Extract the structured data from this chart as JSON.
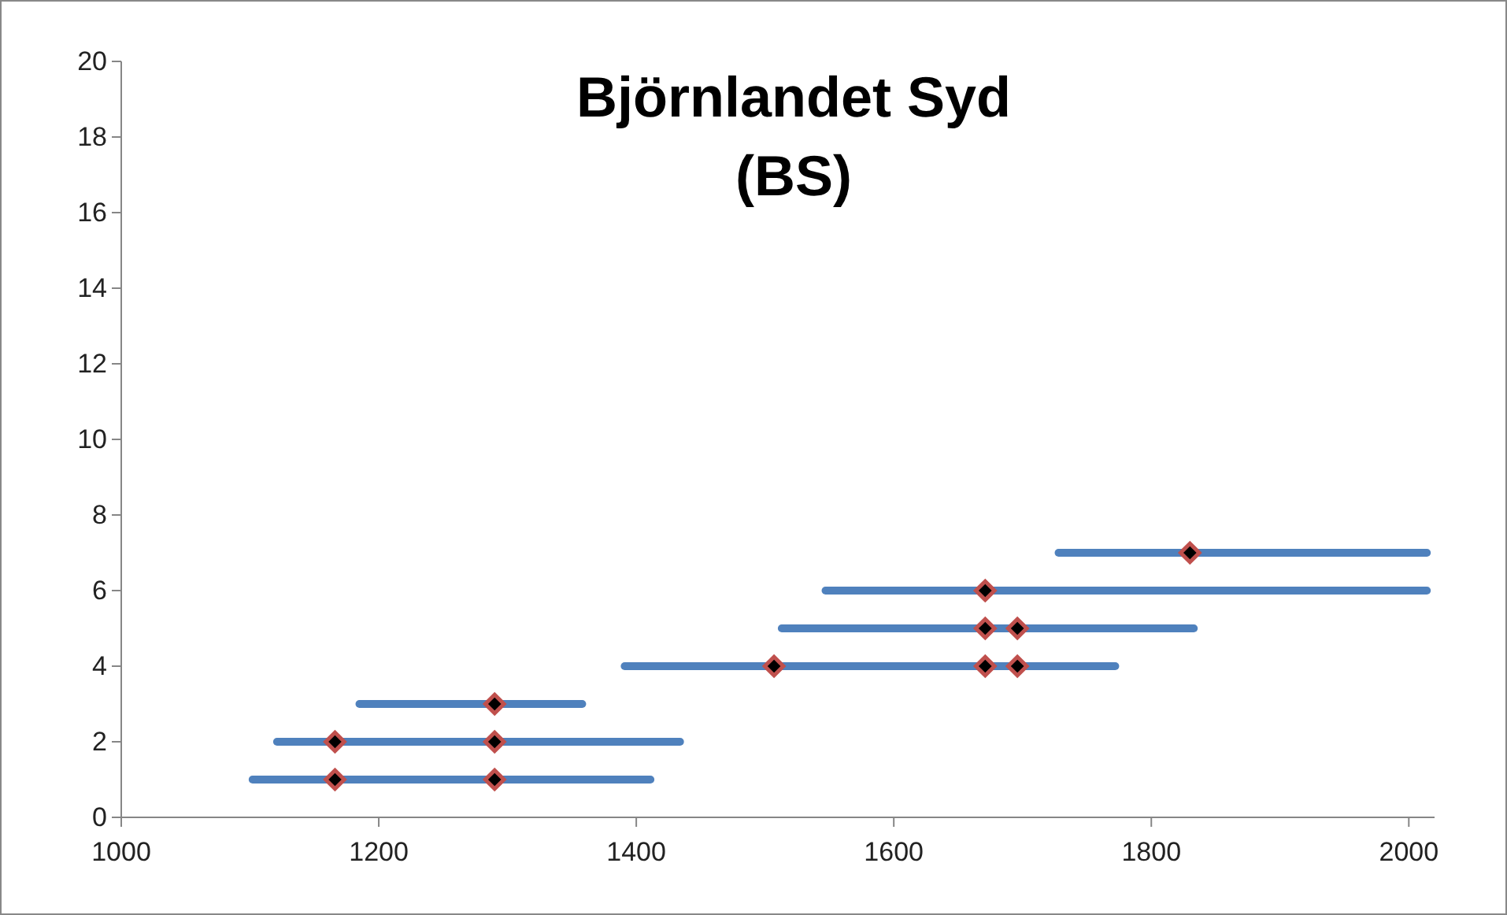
{
  "chart_data": {
    "type": "line",
    "title": "Björnlandet Syd",
    "subtitle": "(BS)",
    "xlim": [
      1000,
      2020
    ],
    "xticks": [
      1000,
      1200,
      1400,
      1600,
      1800,
      2000
    ],
    "ylim": [
      0,
      20
    ],
    "yticks": [
      0,
      2,
      4,
      6,
      8,
      10,
      12,
      14,
      16,
      18,
      20
    ],
    "grid": false,
    "line_style": "solid",
    "series": [
      {
        "color": "#4f81bd",
        "x": [
          1102,
          1411
        ],
        "values": [
          1,
          1
        ]
      },
      {
        "color": "#4f81bd",
        "x": [
          1121,
          1434
        ],
        "values": [
          2,
          2
        ]
      },
      {
        "color": "#4f81bd",
        "x": [
          1185,
          1358
        ],
        "values": [
          3,
          3
        ]
      },
      {
        "color": "#4f81bd",
        "x": [
          1391,
          1772
        ],
        "values": [
          4,
          4
        ]
      },
      {
        "color": "#4f81bd",
        "x": [
          1513,
          1833
        ],
        "values": [
          5,
          5
        ]
      },
      {
        "color": "#4f81bd",
        "x": [
          1547,
          2014
        ],
        "values": [
          6,
          6
        ]
      },
      {
        "color": "#4f81bd",
        "x": [
          1728,
          2014
        ],
        "values": [
          7,
          7
        ]
      },
      {
        "type": "scatter",
        "color": "#000000",
        "marker": "diamond",
        "x": [
          1166,
          1290,
          1166,
          1290,
          1290,
          1507,
          1671,
          1696,
          1671,
          1696,
          1671,
          1830
        ],
        "values": [
          1,
          1,
          2,
          2,
          3,
          4,
          4,
          4,
          5,
          5,
          6,
          7
        ]
      }
    ]
  }
}
